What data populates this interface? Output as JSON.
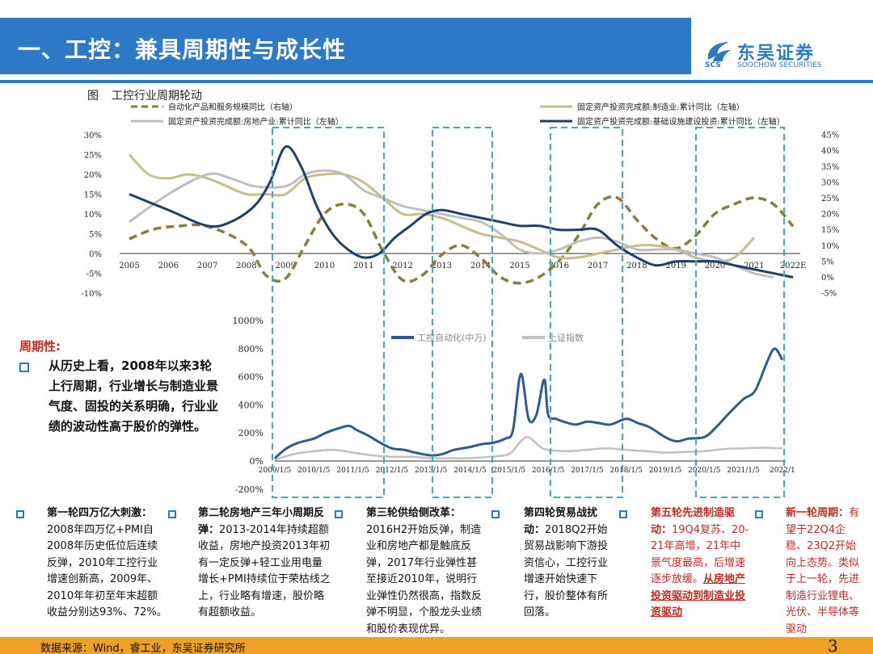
{
  "header": {
    "title": "一、工控：兼具周期性与成长性",
    "logo_cn": "东吴证券",
    "logo_abbr": "SCS",
    "logo_en": "SOOCHOW SECURITIES"
  },
  "figure": {
    "tag": "图",
    "caption": "工控行业周期轮动"
  },
  "colors": {
    "brand_blue": "#2e78c8",
    "automation_olive": "#8b7d3a",
    "manufacturing_tan": "#c9bd8a",
    "realestate_gray": "#bfbfbf",
    "infrastructure_navy": "#1f3f6e",
    "highlight_red": "#c8281e",
    "dashed_box": "#3fa8c8",
    "footer_orange": "#f0a028"
  },
  "chart_data": [
    {
      "type": "line",
      "x": [
        "2005",
        "2006",
        "2007",
        "2008",
        "2009",
        "2010",
        "2011",
        "2012",
        "2013",
        "2014",
        "2015",
        "2016",
        "2017",
        "2018",
        "2019",
        "2020",
        "2021",
        "2022E"
      ],
      "ylim_left": [
        -10,
        30
      ],
      "ylim_right": [
        -5,
        45
      ],
      "yticks_left": [
        "30%",
        "25%",
        "20%",
        "15%",
        "10%",
        "5%",
        "0%",
        "-5%",
        "-10%"
      ],
      "yticks_right": [
        "45%",
        "40%",
        "35%",
        "30%",
        "25%",
        "20%",
        "15%",
        "10%",
        "5%",
        "0%",
        "-5%"
      ],
      "series": [
        {
          "name": "自动化产品和服务规模同比（右轴）",
          "axis": "right",
          "style": "dashed",
          "color": "#8b7d3a",
          "x": [
            0,
            0.6,
            1.2,
            2.0,
            3.0,
            3.5,
            4.0,
            4.5,
            5.0,
            5.5,
            6.0,
            6.5,
            7.0,
            7.5,
            8.0,
            8.5,
            9.0,
            9.5,
            10.0,
            10.5,
            11.0,
            11.5,
            12.0,
            12.5,
            13.0,
            13.5,
            14.0,
            14.5,
            15.0,
            15.5,
            16.0,
            16.5,
            17.0
          ],
          "y": [
            12,
            15,
            16,
            16,
            10,
            0.5,
            -0.5,
            10,
            20,
            23,
            20,
            8,
            -1,
            0.5,
            7,
            10,
            6,
            0,
            -2,
            0,
            5,
            13,
            23,
            25,
            18,
            12,
            9,
            13,
            20,
            23,
            25,
            23,
            16
          ]
        },
        {
          "name": "固定资产投资完成额:制造业:累计同比（左轴）",
          "axis": "left",
          "style": "solid",
          "color": "#c9bd8a",
          "x": [
            0,
            0.5,
            1.0,
            1.5,
            2.0,
            2.5,
            3.0,
            3.5,
            4.0,
            4.5,
            5.0,
            5.5,
            6.0,
            6.5,
            7.0,
            7.5,
            8.0,
            8.5,
            9.0,
            9.5,
            10.0,
            10.5,
            11.0,
            11.5,
            12.0,
            12.5,
            13.0,
            13.5,
            14.0,
            14.5,
            15.0,
            15.5,
            16.0
          ],
          "y": [
            25,
            20,
            19,
            20,
            19,
            17,
            15,
            15,
            15,
            19,
            20,
            20,
            18,
            14,
            10,
            10,
            9,
            7,
            5,
            4,
            3,
            1,
            -1,
            -1,
            0,
            1,
            2,
            2,
            1,
            -1,
            -2,
            -1,
            4
          ]
        },
        {
          "name": "固定资产投资完成额:房地产业:累计同比（左轴）",
          "axis": "left",
          "style": "solid",
          "color": "#bfbfbf",
          "x": [
            0,
            1.0,
            2.0,
            2.6,
            3.2,
            4.0,
            4.5,
            5.0,
            5.5,
            6.0,
            6.5,
            7.0,
            7.5,
            8.0,
            8.5,
            9.0,
            9.5,
            10.0,
            10.5,
            11.0,
            11.5,
            12.0,
            12.5,
            13.0,
            13.5,
            14.0,
            14.5,
            15.0,
            15.5,
            16.0,
            16.5
          ],
          "y": [
            8,
            15,
            20,
            19,
            17,
            17,
            20,
            21,
            20,
            16,
            14,
            12,
            11,
            10,
            9,
            8,
            5,
            1,
            0,
            1,
            3,
            4,
            3,
            1,
            1,
            1,
            0,
            -1,
            -3,
            -5,
            -6
          ]
        },
        {
          "name": "固定资产投资完成额:基础设施建设投资:累计同比（左轴）",
          "axis": "left",
          "style": "solid",
          "color": "#1f3f6e",
          "x": [
            0,
            1.0,
            2.0,
            2.6,
            3.2,
            3.6,
            4.0,
            4.4,
            4.8,
            5.2,
            5.6,
            6.0,
            6.4,
            6.8,
            7.2,
            7.6,
            8.0,
            8.5,
            9.0,
            9.5,
            10.0,
            10.5,
            11.0,
            11.5,
            12.0,
            12.5,
            13.0,
            13.5,
            14.0,
            14.5,
            15.0,
            15.5,
            16.0,
            16.5,
            17.0
          ],
          "y": [
            15,
            11,
            7,
            8,
            12,
            18,
            27,
            22,
            12,
            5,
            1,
            -1,
            0,
            4,
            7,
            10,
            11,
            10,
            9,
            8,
            7,
            7,
            6,
            6,
            6,
            2,
            -1,
            -3,
            -2,
            -2,
            -2,
            -3,
            -4,
            -5,
            -6
          ]
        }
      ]
    },
    {
      "type": "line",
      "x_ticks": [
        "2009/1/5",
        "2010/1/5",
        "2011/1/5",
        "2012/1/5",
        "2013/1/5",
        "2014/1/5",
        "2015/1/5",
        "2016/1/5",
        "2017/1/5",
        "2018/1/5",
        "2019/1/5",
        "2020/1/5",
        "2021/1/5",
        "2022/1"
      ],
      "ylim": [
        -200,
        1000
      ],
      "yticks": [
        "1000%",
        "800%",
        "600%",
        "400%",
        "200%",
        "0%",
        "-200%"
      ],
      "series": [
        {
          "name": "工控自动化(中万)",
          "color": "#2e5a96",
          "x": [
            0,
            0.3,
            0.6,
            1.0,
            1.3,
            1.6,
            1.9,
            2.1,
            2.4,
            2.7,
            3.0,
            3.3,
            3.6,
            4.0,
            4.3,
            4.6,
            5.0,
            5.3,
            5.6,
            5.9,
            6.1,
            6.3,
            6.5,
            6.7,
            6.9,
            7.0,
            7.2,
            7.4,
            7.7,
            8.0,
            8.3,
            8.6,
            9.0,
            9.3,
            9.6,
            10.0,
            10.3,
            10.6,
            11.0,
            11.3,
            11.6,
            12.0,
            12.3,
            12.6,
            12.8,
            13.0
          ],
          "y": [
            20,
            90,
            130,
            160,
            200,
            230,
            250,
            220,
            180,
            130,
            90,
            80,
            60,
            40,
            50,
            80,
            100,
            120,
            130,
            160,
            220,
            620,
            300,
            330,
            580,
            330,
            300,
            280,
            260,
            280,
            270,
            260,
            300,
            270,
            240,
            170,
            140,
            160,
            170,
            240,
            330,
            440,
            500,
            700,
            800,
            720
          ]
        },
        {
          "name": "上证指数",
          "color": "#c0c0c0",
          "x": [
            0,
            0.5,
            1.0,
            1.5,
            2.0,
            2.5,
            3.0,
            3.5,
            4.0,
            4.5,
            5.0,
            5.5,
            6.0,
            6.3,
            6.5,
            6.8,
            7.0,
            7.5,
            8.0,
            8.5,
            9.0,
            9.5,
            10.0,
            10.5,
            11.0,
            11.5,
            12.0,
            12.5,
            13.0
          ],
          "y": [
            10,
            50,
            70,
            80,
            60,
            40,
            30,
            30,
            20,
            20,
            20,
            30,
            50,
            140,
            170,
            100,
            80,
            70,
            80,
            90,
            80,
            70,
            60,
            65,
            70,
            85,
            90,
            95,
            90
          ]
        }
      ]
    }
  ],
  "top_legend": {
    "automation": "自动化产品和服务规模同比（右轴）",
    "manufacturing": "固定资产投资完成额:制造业:累计同比（左轴）",
    "realestate": "固定资产投资完成额:房地产业:累计同比（左轴）",
    "infrastructure": "固定资产投资完成额:基础设施建设投资:累计同比（左轴）"
  },
  "bottom_legend": {
    "automation": "工控自动化(中万)",
    "index": "上证指数"
  },
  "periodicity": {
    "title": "周期性:",
    "text": "从历史上看，2008年以来3轮上行周期，行业增长与制造业景气度、固投的关系明确，行业业绩的波动性高于股价的弹性。"
  },
  "annotations": {
    "a1_title": "第一轮四万亿大刺激：",
    "a1_body": "2008年四万亿+PMI自2008年历史低位后连续反弹，2010年工控行业增速创新高，2009年、2010年年初至年末超额收益分别达93%、72%。",
    "a2_title": "第二轮房地产三年小周期反弹：",
    "a2_body": "2013-2014年持续超额收益，房地产投资2013年初有一定反弹+轻工业用电量增长+PMI持续位于荣枯线之上，行业略有增速，股价略有超额收益。",
    "a3_title": "第三轮供给侧改革：",
    "a3_body": "2016H2开始反弹，制造业和房地产都是触底反弹，2017年行业弹性甚至接近2010年，说明行业弹性仍然很高，指数反弹不明显，个股龙头业绩和股价表现优异。",
    "a4_title": "第四轮贸易战扰动：",
    "a4_body": "2018Q2开始贸易战影响下游投资信心，工控行业增速开始快速下行，股价整体有所回落。",
    "a5_title": "第五轮先进制造驱动：",
    "a5_body": "19Q4复苏、20-21年高增，21年中景气度最高，后增速逐步放缓。",
    "a5_tail": "从房地产投资驱动到制造业投资驱动",
    "a6_title": "新一轮周期：",
    "a6_body": "有望于22Q4企稳、23Q2开始向上态势。类似于上一轮，先进制造行业锂电、光伏、半导体等驱动"
  },
  "footer": {
    "source": "数据来源：Wind，睿工业，东吴证券研究所",
    "page": "3"
  }
}
